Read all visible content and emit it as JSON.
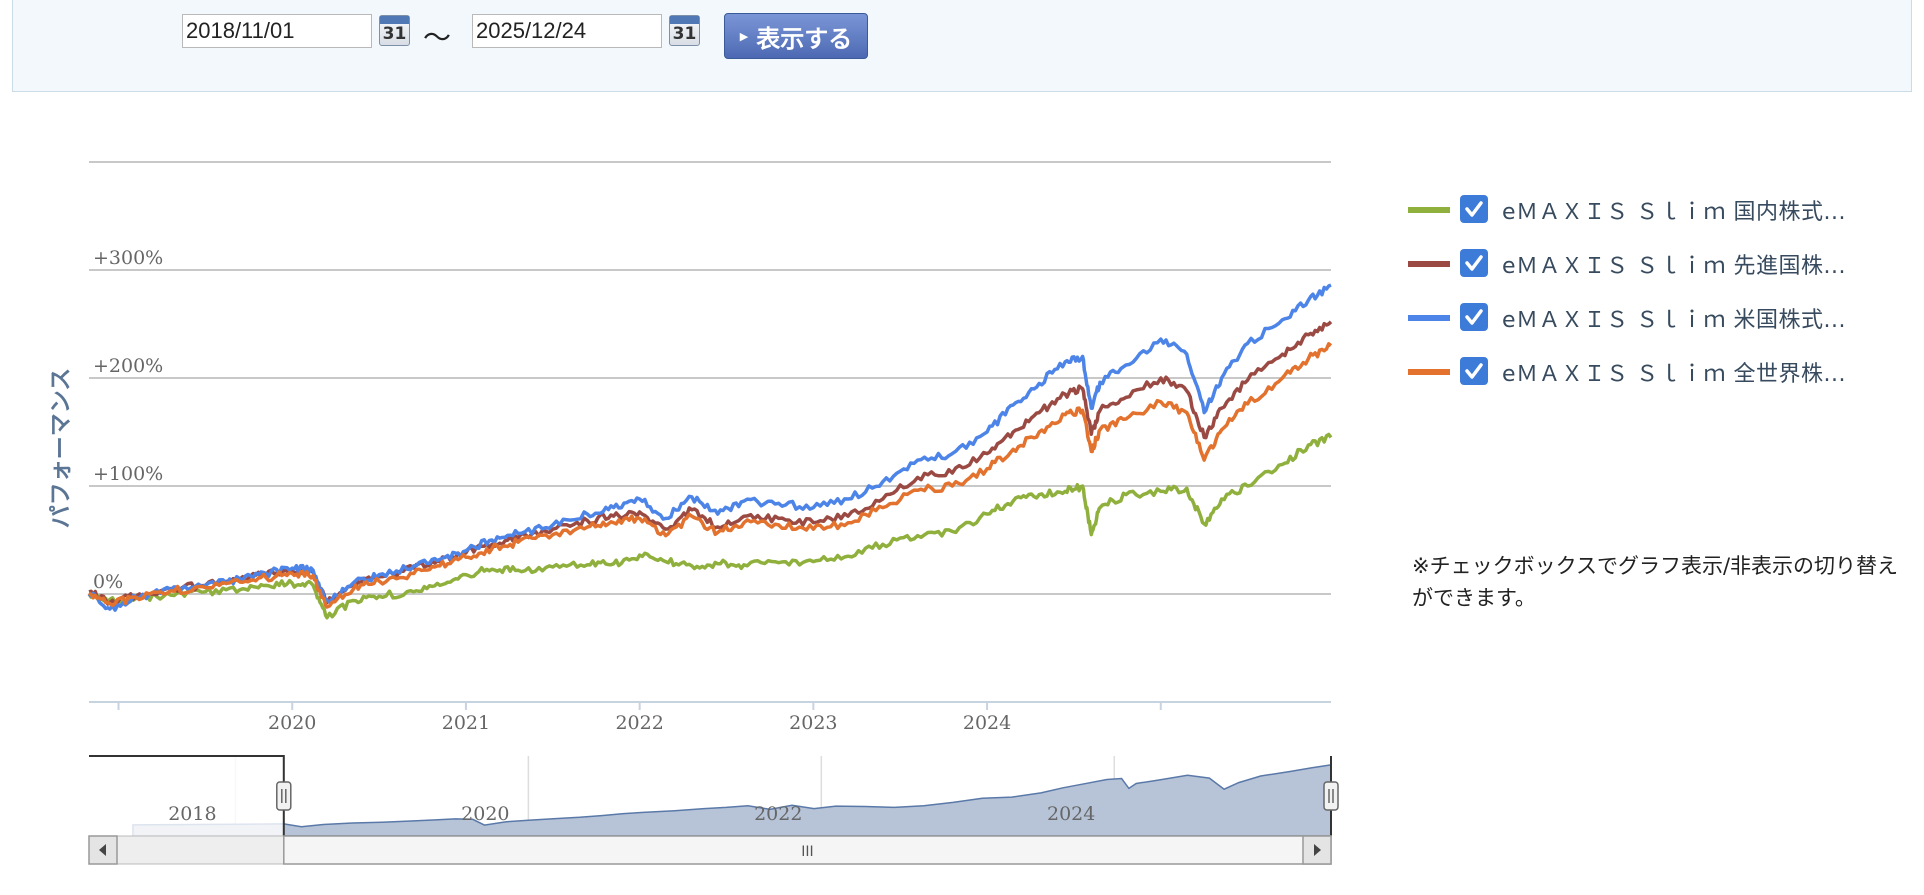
{
  "toolbar": {
    "start_date": "2018/11/01",
    "end_date": "2025/12/24",
    "calendar_icon_text": "31",
    "separator": "～",
    "show_button_label": "表示する"
  },
  "legend": {
    "items": [
      {
        "label": "eＭＡＸＩＳ Ｓｌｉｍ 国内株式...",
        "color": "#8fb03c",
        "checked": true
      },
      {
        "label": "eＭＡＸＩＳ Ｓｌｉｍ 先進国株...",
        "color": "#9a4a42",
        "checked": true
      },
      {
        "label": "eＭＡＸＩＳ Ｓｌｉｍ 米国株式...",
        "color": "#4d84e8",
        "checked": true
      },
      {
        "label": "eＭＡＸＩＳ Ｓｌｉｍ 全世界株...",
        "color": "#e2722e",
        "checked": true
      }
    ]
  },
  "note": "※チェックボックスでグラフ表示/非表示の切り替えができます。",
  "chart_data": {
    "type": "line",
    "ylabel": "パフォーマンス",
    "ylim": [
      -100,
      400
    ],
    "yticks": [
      0,
      100,
      200,
      300
    ],
    "ytick_labels": [
      "0%",
      "+100%",
      "+200%",
      "+300%"
    ],
    "xlim": [
      2018.83,
      2025.98
    ],
    "xticks": [
      2020,
      2021,
      2022,
      2023,
      2024
    ],
    "xtick_labels": [
      "2020",
      "2021",
      "2022",
      "2023",
      "2024"
    ],
    "grid": true,
    "legend": "right",
    "series": [
      {
        "color": "#8fb03c",
        "points": [
          [
            2018.83,
            0
          ],
          [
            2018.95,
            -5
          ],
          [
            2019.1,
            -4
          ],
          [
            2019.3,
            -1
          ],
          [
            2019.5,
            2
          ],
          [
            2019.7,
            4
          ],
          [
            2019.85,
            8
          ],
          [
            2020.0,
            10
          ],
          [
            2020.12,
            8
          ],
          [
            2020.2,
            -22
          ],
          [
            2020.35,
            -6
          ],
          [
            2020.5,
            -2
          ],
          [
            2020.7,
            2
          ],
          [
            2020.85,
            8
          ],
          [
            2021.0,
            18
          ],
          [
            2021.15,
            23
          ],
          [
            2021.3,
            22
          ],
          [
            2021.5,
            25
          ],
          [
            2021.7,
            27
          ],
          [
            2021.85,
            28
          ],
          [
            2022.0,
            36
          ],
          [
            2022.15,
            30
          ],
          [
            2022.3,
            26
          ],
          [
            2022.45,
            28
          ],
          [
            2022.6,
            27
          ],
          [
            2022.8,
            29
          ],
          [
            2023.0,
            30
          ],
          [
            2023.2,
            35
          ],
          [
            2023.4,
            46
          ],
          [
            2023.6,
            54
          ],
          [
            2023.8,
            58
          ],
          [
            2024.0,
            74
          ],
          [
            2024.15,
            86
          ],
          [
            2024.3,
            92
          ],
          [
            2024.45,
            95
          ],
          [
            2024.55,
            100
          ],
          [
            2024.6,
            55
          ],
          [
            2024.65,
            80
          ],
          [
            2024.8,
            92
          ],
          [
            2025.0,
            95
          ],
          [
            2025.15,
            98
          ],
          [
            2025.25,
            65
          ],
          [
            2025.35,
            88
          ],
          [
            2025.5,
            100
          ],
          [
            2025.7,
            120
          ],
          [
            2025.85,
            138
          ],
          [
            2025.98,
            145
          ]
        ]
      },
      {
        "color": "#9a4a42",
        "points": [
          [
            2018.83,
            2
          ],
          [
            2018.95,
            -8
          ],
          [
            2019.1,
            -2
          ],
          [
            2019.3,
            5
          ],
          [
            2019.5,
            8
          ],
          [
            2019.7,
            14
          ],
          [
            2019.85,
            18
          ],
          [
            2020.0,
            22
          ],
          [
            2020.12,
            20
          ],
          [
            2020.2,
            -8
          ],
          [
            2020.35,
            8
          ],
          [
            2020.5,
            16
          ],
          [
            2020.7,
            24
          ],
          [
            2020.85,
            30
          ],
          [
            2021.0,
            38
          ],
          [
            2021.15,
            46
          ],
          [
            2021.3,
            52
          ],
          [
            2021.5,
            60
          ],
          [
            2021.7,
            68
          ],
          [
            2021.85,
            72
          ],
          [
            2022.0,
            76
          ],
          [
            2022.15,
            60
          ],
          [
            2022.3,
            78
          ],
          [
            2022.45,
            62
          ],
          [
            2022.6,
            72
          ],
          [
            2022.8,
            70
          ],
          [
            2023.0,
            66
          ],
          [
            2023.2,
            72
          ],
          [
            2023.4,
            88
          ],
          [
            2023.6,
            108
          ],
          [
            2023.8,
            112
          ],
          [
            2024.0,
            130
          ],
          [
            2024.15,
            150
          ],
          [
            2024.3,
            168
          ],
          [
            2024.45,
            185
          ],
          [
            2024.55,
            190
          ],
          [
            2024.6,
            148
          ],
          [
            2024.65,
            170
          ],
          [
            2024.8,
            182
          ],
          [
            2025.0,
            200
          ],
          [
            2025.15,
            188
          ],
          [
            2025.25,
            145
          ],
          [
            2025.35,
            172
          ],
          [
            2025.5,
            198
          ],
          [
            2025.7,
            222
          ],
          [
            2025.85,
            240
          ],
          [
            2025.98,
            252
          ]
        ]
      },
      {
        "color": "#4d84e8",
        "points": [
          [
            2018.83,
            0
          ],
          [
            2018.95,
            -14
          ],
          [
            2019.1,
            -3
          ],
          [
            2019.3,
            4
          ],
          [
            2019.5,
            8
          ],
          [
            2019.7,
            14
          ],
          [
            2019.85,
            19
          ],
          [
            2020.0,
            24
          ],
          [
            2020.12,
            22
          ],
          [
            2020.2,
            -6
          ],
          [
            2020.35,
            10
          ],
          [
            2020.5,
            18
          ],
          [
            2020.7,
            26
          ],
          [
            2020.85,
            32
          ],
          [
            2021.0,
            40
          ],
          [
            2021.15,
            50
          ],
          [
            2021.3,
            56
          ],
          [
            2021.5,
            64
          ],
          [
            2021.7,
            74
          ],
          [
            2021.85,
            80
          ],
          [
            2022.0,
            88
          ],
          [
            2022.15,
            70
          ],
          [
            2022.3,
            90
          ],
          [
            2022.45,
            74
          ],
          [
            2022.6,
            86
          ],
          [
            2022.8,
            84
          ],
          [
            2023.0,
            80
          ],
          [
            2023.2,
            88
          ],
          [
            2023.4,
            104
          ],
          [
            2023.6,
            124
          ],
          [
            2023.8,
            130
          ],
          [
            2024.0,
            150
          ],
          [
            2024.15,
            175
          ],
          [
            2024.3,
            195
          ],
          [
            2024.45,
            215
          ],
          [
            2024.55,
            220
          ],
          [
            2024.6,
            172
          ],
          [
            2024.65,
            196
          ],
          [
            2024.8,
            212
          ],
          [
            2025.0,
            236
          ],
          [
            2025.15,
            222
          ],
          [
            2025.25,
            168
          ],
          [
            2025.35,
            200
          ],
          [
            2025.5,
            232
          ],
          [
            2025.7,
            254
          ],
          [
            2025.85,
            272
          ],
          [
            2025.98,
            286
          ]
        ]
      },
      {
        "color": "#e2722e",
        "points": [
          [
            2018.83,
            1
          ],
          [
            2018.95,
            -9
          ],
          [
            2019.1,
            -3
          ],
          [
            2019.3,
            3
          ],
          [
            2019.5,
            6
          ],
          [
            2019.7,
            11
          ],
          [
            2019.85,
            15
          ],
          [
            2020.0,
            19
          ],
          [
            2020.12,
            17
          ],
          [
            2020.2,
            -12
          ],
          [
            2020.35,
            4
          ],
          [
            2020.5,
            12
          ],
          [
            2020.7,
            19
          ],
          [
            2020.85,
            26
          ],
          [
            2021.0,
            34
          ],
          [
            2021.15,
            42
          ],
          [
            2021.3,
            48
          ],
          [
            2021.5,
            55
          ],
          [
            2021.7,
            62
          ],
          [
            2021.85,
            66
          ],
          [
            2022.0,
            70
          ],
          [
            2022.15,
            54
          ],
          [
            2022.3,
            72
          ],
          [
            2022.45,
            57
          ],
          [
            2022.6,
            66
          ],
          [
            2022.8,
            64
          ],
          [
            2023.0,
            60
          ],
          [
            2023.2,
            66
          ],
          [
            2023.4,
            80
          ],
          [
            2023.6,
            96
          ],
          [
            2023.8,
            100
          ],
          [
            2024.0,
            116
          ],
          [
            2024.15,
            134
          ],
          [
            2024.3,
            150
          ],
          [
            2024.45,
            166
          ],
          [
            2024.55,
            170
          ],
          [
            2024.6,
            132
          ],
          [
            2024.65,
            152
          ],
          [
            2024.8,
            162
          ],
          [
            2025.0,
            178
          ],
          [
            2025.15,
            168
          ],
          [
            2025.25,
            124
          ],
          [
            2025.35,
            152
          ],
          [
            2025.5,
            176
          ],
          [
            2025.7,
            200
          ],
          [
            2025.85,
            218
          ],
          [
            2025.98,
            230
          ]
        ]
      }
    ],
    "navigator": {
      "xlim": [
        2017.5,
        2025.98
      ],
      "xticks": [
        2018,
        2020,
        2022,
        2024
      ],
      "xtick_labels": [
        "2018",
        "2020",
        "2022",
        "2024"
      ],
      "selection": [
        2018.83,
        2025.98
      ],
      "scroll_handle_text": "III",
      "handle_text": "||"
    }
  }
}
